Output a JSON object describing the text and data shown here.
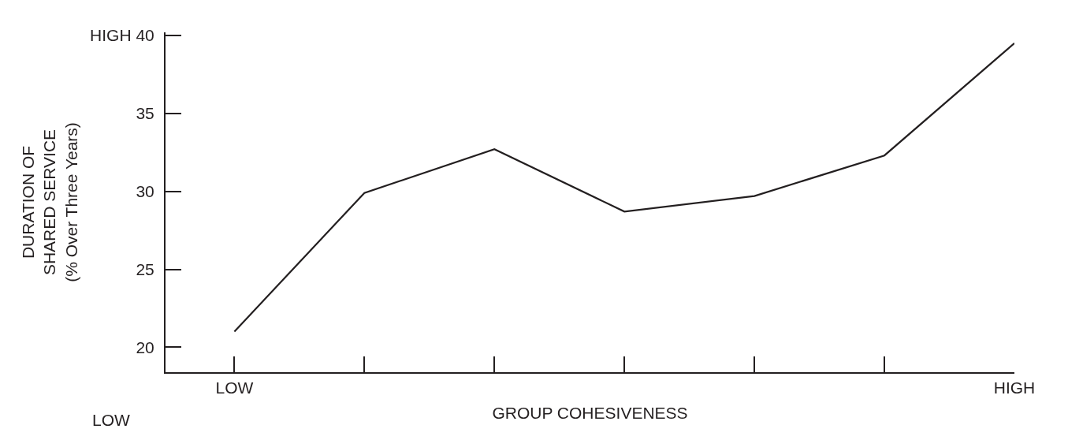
{
  "chart_data": {
    "type": "line",
    "xlabel": "GROUP COHESIVENESS",
    "ylabel": "DURATION OF\nSHARED SERVICE\n(% Over Three Years)",
    "categories": [
      "LOW",
      null,
      null,
      null,
      null,
      null,
      "HIGH"
    ],
    "series": [
      {
        "color": "#231f20",
        "values": [
          21.0,
          29.9,
          32.7,
          28.7,
          29.7,
          32.3,
          39.5
        ]
      }
    ],
    "ylim": [
      18.4,
      40.2
    ],
    "yticks": [
      20,
      25,
      30,
      35,
      {
        "value": 40,
        "label": "HIGH 40"
      }
    ],
    "annotations": [
      "LOW"
    ],
    "marker": "none",
    "line_style": "solid"
  }
}
